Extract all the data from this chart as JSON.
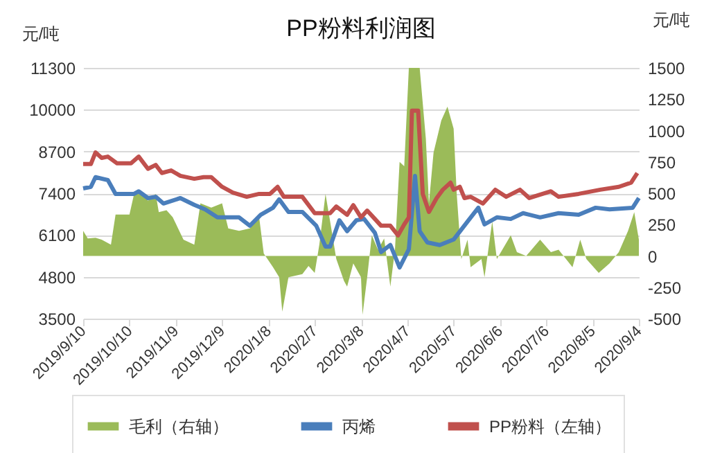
{
  "chart_data": {
    "type": "line",
    "title": "PP粉料利润图",
    "ylabel": "元/吨",
    "y2label": "元/吨",
    "xlim": [
      "2019-09-10",
      "2020-09-04"
    ],
    "xticks": [
      {
        "value": "2019-09-10",
        "label": "2019/9/10"
      },
      {
        "value": "2019-10-10",
        "label": "2019/10/10"
      },
      {
        "value": "2019-11-09",
        "label": "2019/11/9"
      },
      {
        "value": "2019-12-09",
        "label": "2019/12/9"
      },
      {
        "value": "2020-01-08",
        "label": "2020/1/8"
      },
      {
        "value": "2020-02-07",
        "label": "2020/2/7"
      },
      {
        "value": "2020-03-08",
        "label": "2020/3/8"
      },
      {
        "value": "2020-04-07",
        "label": "2020/4/7"
      },
      {
        "value": "2020-05-07",
        "label": "2020/5/7"
      },
      {
        "value": "2020-06-06",
        "label": "2020/6/6"
      },
      {
        "value": "2020-07-06",
        "label": "2020/7/6"
      },
      {
        "value": "2020-08-05",
        "label": "2020/8/5"
      },
      {
        "value": "2020-09-04",
        "label": "2020/9/4"
      }
    ],
    "ylim": [
      3500,
      11300
    ],
    "yticks": [
      3500,
      4800,
      6100,
      7400,
      8700,
      10000,
      11300
    ],
    "y2lim": [
      -500,
      1500
    ],
    "y2ticks": [
      -500,
      -250,
      0,
      250,
      500,
      750,
      1000,
      1250,
      1500
    ],
    "grid": "y",
    "legend": "bottom",
    "series": [
      {
        "name": "毛利（右轴）",
        "type": "area",
        "axis": "y2",
        "color": "#9bbb59",
        "x": [
          "2019-09-10",
          "2019-09-13",
          "2019-09-18",
          "2019-09-22",
          "2019-09-28",
          "2019-10-01",
          "2019-10-10",
          "2019-10-13",
          "2019-10-16",
          "2019-10-22",
          "2019-10-27",
          "2019-10-29",
          "2019-11-03",
          "2019-11-07",
          "2019-11-14",
          "2019-11-21",
          "2019-11-25",
          "2019-12-02",
          "2019-12-09",
          "2019-12-13",
          "2019-12-20",
          "2019-12-27",
          "2020-01-02",
          "2020-01-05",
          "2020-01-11",
          "2020-01-15",
          "2020-01-17",
          "2020-01-21",
          "2020-01-30",
          "2020-02-03",
          "2020-02-07",
          "2020-02-10",
          "2020-02-14",
          "2020-02-17",
          "2020-02-21",
          "2020-02-26",
          "2020-02-28",
          "2020-03-03",
          "2020-03-08",
          "2020-03-09",
          "2020-03-12",
          "2020-03-15",
          "2020-03-19",
          "2020-03-23",
          "2020-03-27",
          "2020-03-30",
          "2020-04-02",
          "2020-04-05",
          "2020-04-08",
          "2020-04-15",
          "2020-04-19",
          "2020-04-21",
          "2020-04-24",
          "2020-04-29",
          "2020-05-03",
          "2020-05-07",
          "2020-05-09",
          "2020-05-12",
          "2020-05-16",
          "2020-05-18",
          "2020-05-25",
          "2020-05-27",
          "2020-06-01",
          "2020-06-04",
          "2020-06-13",
          "2020-06-17",
          "2020-06-23",
          "2020-07-02",
          "2020-07-09",
          "2020-07-14",
          "2020-07-23",
          "2020-07-28",
          "2020-08-01",
          "2020-08-09",
          "2020-08-16",
          "2020-08-22",
          "2020-08-28",
          "2020-09-01",
          "2020-09-04"
        ],
        "values": [
          200,
          140,
          145,
          130,
          90,
          330,
          330,
          495,
          520,
          440,
          495,
          350,
          365,
          310,
          130,
          90,
          420,
          385,
          420,
          220,
          200,
          220,
          310,
          20,
          -90,
          -170,
          -445,
          -170,
          -145,
          -80,
          -135,
          90,
          495,
          275,
          -25,
          -200,
          -245,
          -60,
          -170,
          -470,
          -170,
          165,
          50,
          140,
          -245,
          50,
          750,
          715,
          1500,
          1500,
          935,
          420,
          825,
          1080,
          1190,
          1015,
          495,
          -25,
          130,
          -90,
          -25,
          -170,
          275,
          -25,
          165,
          30,
          0,
          130,
          30,
          50,
          -90,
          130,
          -25,
          -135,
          -60,
          30,
          200,
          350,
          130
        ]
      },
      {
        "name": "丙烯",
        "color": "#4a7ebb",
        "x": [
          "2019-09-10",
          "2019-09-15",
          "2019-09-18",
          "2019-09-26",
          "2019-10-01",
          "2019-10-13",
          "2019-10-16",
          "2019-10-22",
          "2019-10-27",
          "2019-11-01",
          "2019-11-12",
          "2019-11-21",
          "2019-11-28",
          "2019-12-06",
          "2019-12-20",
          "2019-12-27",
          "2020-01-03",
          "2020-01-11",
          "2020-01-15",
          "2020-01-21",
          "2020-01-30",
          "2020-02-08",
          "2020-02-14",
          "2020-02-17",
          "2020-02-23",
          "2020-02-28",
          "2020-03-05",
          "2020-03-10",
          "2020-03-17",
          "2020-03-21",
          "2020-03-27",
          "2020-04-02",
          "2020-04-08",
          "2020-04-12",
          "2020-04-15",
          "2020-04-20",
          "2020-04-28",
          "2020-05-07",
          "2020-05-16",
          "2020-05-23",
          "2020-05-27",
          "2020-06-04",
          "2020-06-13",
          "2020-06-21",
          "2020-07-02",
          "2020-07-14",
          "2020-07-27",
          "2020-08-07",
          "2020-08-16",
          "2020-08-31",
          "2020-09-04"
        ],
        "values": [
          7550,
          7600,
          7900,
          7810,
          7380,
          7380,
          7460,
          7250,
          7290,
          7080,
          7250,
          7040,
          6900,
          6650,
          6650,
          6390,
          6730,
          6950,
          7210,
          6820,
          6820,
          6390,
          5740,
          5740,
          6560,
          6220,
          6560,
          6600,
          6170,
          5570,
          5790,
          5090,
          5660,
          7940,
          6220,
          5870,
          5790,
          5960,
          6520,
          6950,
          6430,
          6650,
          6600,
          6780,
          6650,
          6780,
          6730,
          6950,
          6900,
          6950,
          7250
        ]
      },
      {
        "name": "PP粉料（左轴）",
        "color": "#c0504d",
        "x": [
          "2019-09-10",
          "2019-09-15",
          "2019-09-18",
          "2019-09-22",
          "2019-09-26",
          "2019-10-02",
          "2019-10-11",
          "2019-10-16",
          "2019-10-22",
          "2019-10-27",
          "2019-10-31",
          "2019-11-06",
          "2019-11-12",
          "2019-11-21",
          "2019-11-27",
          "2019-12-02",
          "2019-12-09",
          "2019-12-16",
          "2019-12-25",
          "2020-01-02",
          "2020-01-09",
          "2020-01-14",
          "2020-01-18",
          "2020-01-30",
          "2020-02-07",
          "2020-02-17",
          "2020-02-21",
          "2020-02-28",
          "2020-03-03",
          "2020-03-08",
          "2020-03-12",
          "2020-03-17",
          "2020-03-21",
          "2020-03-27",
          "2020-04-01",
          "2020-04-05",
          "2020-04-08",
          "2020-04-10",
          "2020-04-14",
          "2020-04-17",
          "2020-04-21",
          "2020-04-26",
          "2020-04-30",
          "2020-05-05",
          "2020-05-07",
          "2020-05-11",
          "2020-05-14",
          "2020-05-18",
          "2020-05-26",
          "2020-06-03",
          "2020-06-10",
          "2020-06-19",
          "2020-06-25",
          "2020-07-09",
          "2020-07-14",
          "2020-07-27",
          "2020-08-10",
          "2020-08-22",
          "2020-08-30",
          "2020-09-03"
        ],
        "values": [
          8310,
          8310,
          8670,
          8500,
          8540,
          8330,
          8330,
          8540,
          8160,
          8280,
          8030,
          8110,
          7940,
          7850,
          7900,
          7900,
          7600,
          7420,
          7290,
          7380,
          7380,
          7600,
          7290,
          7290,
          6780,
          6780,
          6990,
          6730,
          7030,
          6650,
          6860,
          6600,
          6390,
          6390,
          6090,
          6430,
          6650,
          9970,
          9970,
          7380,
          6820,
          7250,
          7510,
          7730,
          7510,
          7600,
          7250,
          7290,
          7080,
          7510,
          7290,
          7510,
          7250,
          7460,
          7290,
          7380,
          7510,
          7600,
          7730,
          8030
        ]
      }
    ]
  }
}
